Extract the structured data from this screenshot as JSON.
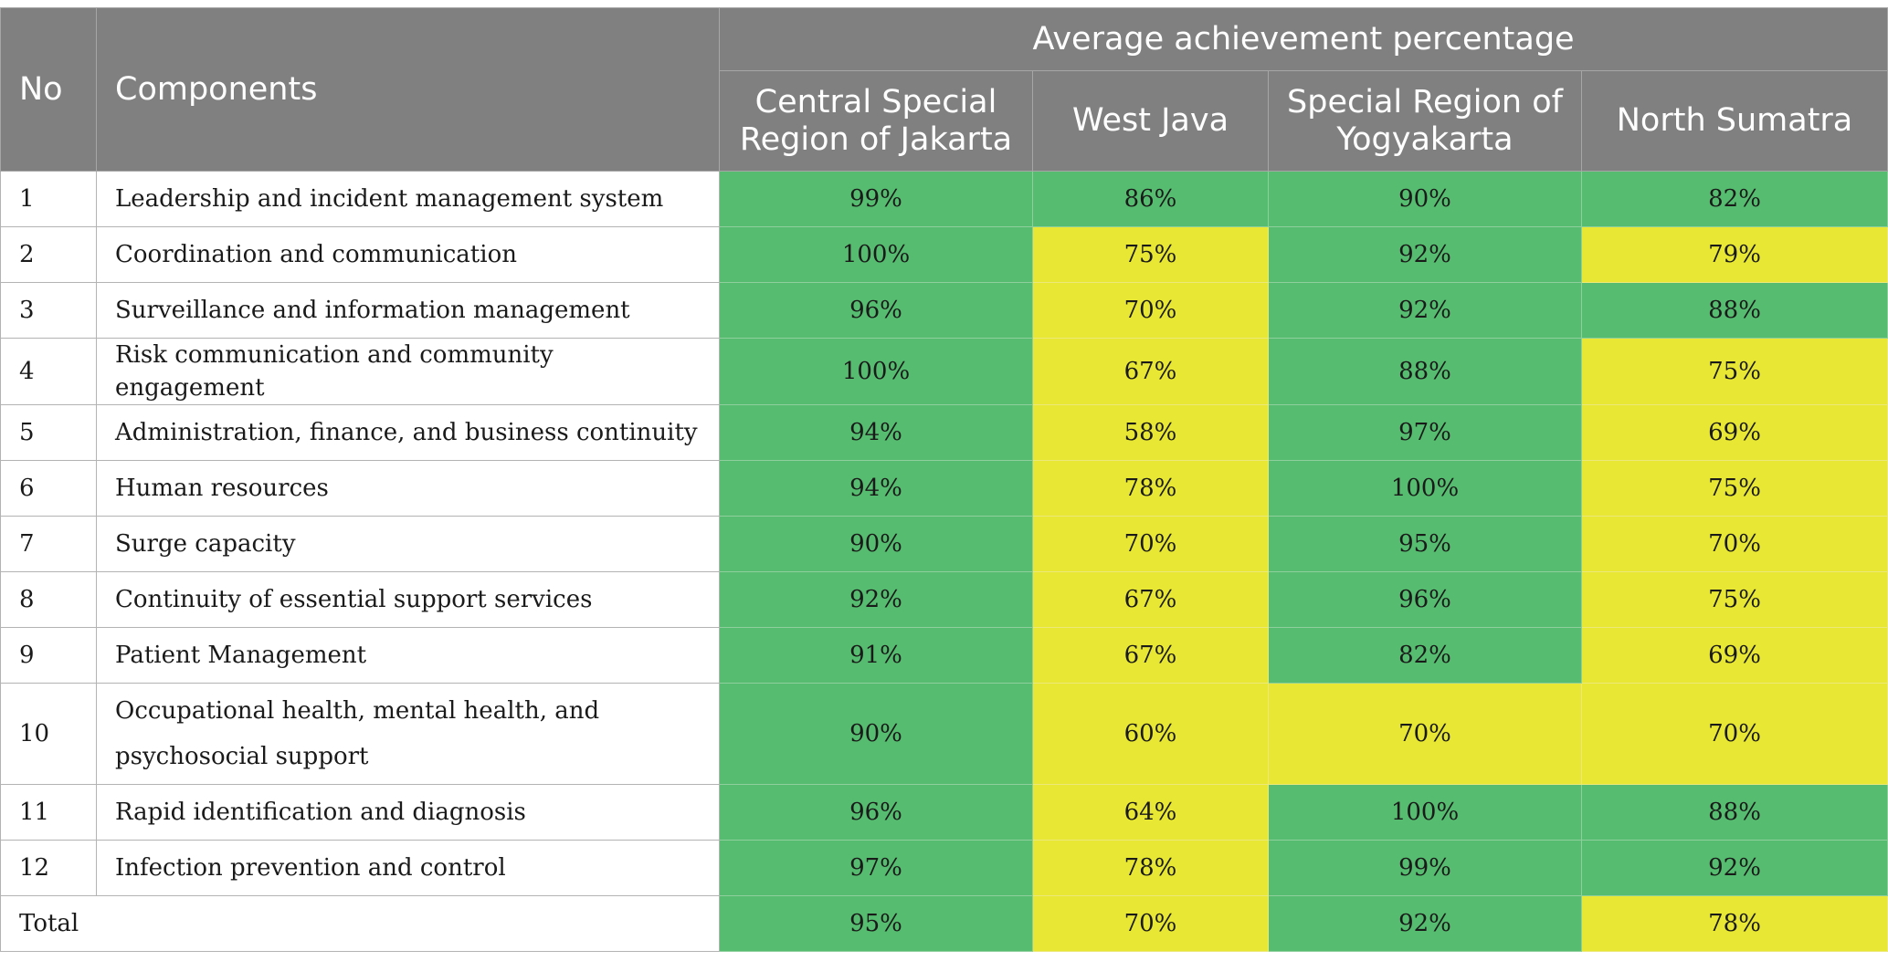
{
  "header": {
    "no_label": "No",
    "components_label": "Components",
    "group_label": "Average achievement percentage",
    "regions": [
      "Central Special Region of Jakarta",
      "West Java",
      "Special Region of Yogyakarta",
      "North Sumatra"
    ]
  },
  "colors": {
    "header_bg": "#808080",
    "header_text": "#ffffff",
    "green": "#56bd70",
    "yellow": "#e8e734"
  },
  "rows": [
    {
      "no": "1",
      "component": "Leadership and incident management system",
      "values": [
        {
          "text": "99%",
          "status": "green"
        },
        {
          "text": "86%",
          "status": "green"
        },
        {
          "text": "90%",
          "status": "green"
        },
        {
          "text": "82%",
          "status": "green"
        }
      ]
    },
    {
      "no": "2",
      "component": "Coordination and communication",
      "values": [
        {
          "text": "100%",
          "status": "green"
        },
        {
          "text": "75%",
          "status": "yellow"
        },
        {
          "text": "92%",
          "status": "green"
        },
        {
          "text": "79%",
          "status": "yellow"
        }
      ]
    },
    {
      "no": "3",
      "component": "Surveillance and information management",
      "values": [
        {
          "text": "96%",
          "status": "green"
        },
        {
          "text": "70%",
          "status": "yellow"
        },
        {
          "text": "92%",
          "status": "green"
        },
        {
          "text": "88%",
          "status": "green"
        }
      ]
    },
    {
      "no": "4",
      "component": "Risk communication and community engagement",
      "values": [
        {
          "text": "100%",
          "status": "green"
        },
        {
          "text": "67%",
          "status": "yellow"
        },
        {
          "text": "88%",
          "status": "green"
        },
        {
          "text": "75%",
          "status": "yellow"
        }
      ]
    },
    {
      "no": "5",
      "component": "Administration, finance, and business continuity",
      "values": [
        {
          "text": "94%",
          "status": "green"
        },
        {
          "text": "58%",
          "status": "yellow"
        },
        {
          "text": "97%",
          "status": "green"
        },
        {
          "text": "69%",
          "status": "yellow"
        }
      ]
    },
    {
      "no": "6",
      "component": "Human resources",
      "values": [
        {
          "text": "94%",
          "status": "green"
        },
        {
          "text": "78%",
          "status": "yellow"
        },
        {
          "text": "100%",
          "status": "green"
        },
        {
          "text": "75%",
          "status": "yellow"
        }
      ]
    },
    {
      "no": "7",
      "component": "Surge capacity",
      "values": [
        {
          "text": "90%",
          "status": "green"
        },
        {
          "text": "70%",
          "status": "yellow"
        },
        {
          "text": "95%",
          "status": "green"
        },
        {
          "text": "70%",
          "status": "yellow"
        }
      ]
    },
    {
      "no": "8",
      "component": "Continuity of essential support services",
      "values": [
        {
          "text": "92%",
          "status": "green"
        },
        {
          "text": "67%",
          "status": "yellow"
        },
        {
          "text": "96%",
          "status": "green"
        },
        {
          "text": "75%",
          "status": "yellow"
        }
      ]
    },
    {
      "no": "9",
      "component": "Patient Management",
      "values": [
        {
          "text": "91%",
          "status": "green"
        },
        {
          "text": "67%",
          "status": "yellow"
        },
        {
          "text": "82%",
          "status": "green"
        },
        {
          "text": "69%",
          "status": "yellow"
        }
      ]
    },
    {
      "no": "10",
      "component": "Occupational health, mental health, and psychosocial support",
      "tall": true,
      "values": [
        {
          "text": "90%",
          "status": "green"
        },
        {
          "text": "60%",
          "status": "yellow"
        },
        {
          "text": "70%",
          "status": "yellow"
        },
        {
          "text": "70%",
          "status": "yellow"
        }
      ]
    },
    {
      "no": "11",
      "component": "Rapid identification and diagnosis",
      "values": [
        {
          "text": "96%",
          "status": "green"
        },
        {
          "text": "64%",
          "status": "yellow"
        },
        {
          "text": "100%",
          "status": "green"
        },
        {
          "text": "88%",
          "status": "green"
        }
      ]
    },
    {
      "no": "12",
      "component": "Infection prevention and control",
      "values": [
        {
          "text": "97%",
          "status": "green"
        },
        {
          "text": "78%",
          "status": "yellow"
        },
        {
          "text": "99%",
          "status": "green"
        },
        {
          "text": "92%",
          "status": "green"
        }
      ]
    }
  ],
  "total": {
    "label": "Total",
    "values": [
      {
        "text": "95%",
        "status": "green"
      },
      {
        "text": "70%",
        "status": "yellow"
      },
      {
        "text": "92%",
        "status": "green"
      },
      {
        "text": "78%",
        "status": "yellow"
      }
    ]
  }
}
